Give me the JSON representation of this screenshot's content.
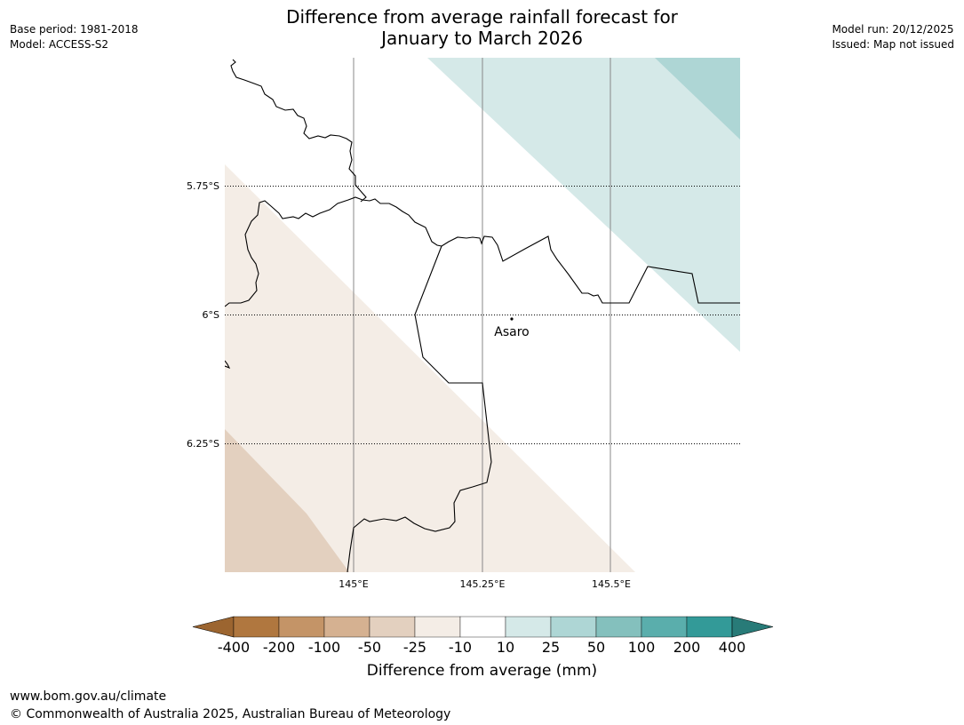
{
  "header": {
    "title_line1": "Difference from average rainfall forecast for",
    "title_line2": "January to March 2026",
    "left_meta": [
      "Base period: 1981-2018",
      "Model: ACCESS-S2"
    ],
    "right_meta": [
      "Model run: 20/12/2025",
      "Issued: Map not issued"
    ]
  },
  "map": {
    "lat_labels": [
      "5.75°S",
      "6°S",
      "6.25°S"
    ],
    "lon_labels": [
      "145°E",
      "145.25°E",
      "145.5°E"
    ],
    "place": {
      "name": "Asaro"
    },
    "colors": {
      "brown_light": "#f4ede6",
      "brown_mid": "#e3d0bf",
      "teal_light": "#d5e9e8",
      "teal_mid": "#aed6d5"
    }
  },
  "legend": {
    "title": "Difference from average (mm)",
    "ticks": [
      "-400",
      "-200",
      "-100",
      "-50",
      "-25",
      "-10",
      "10",
      "25",
      "50",
      "100",
      "200",
      "400"
    ],
    "colors": [
      "#9c6530",
      "#b0773f",
      "#c49467",
      "#d5b191",
      "#e3d0bf",
      "#f4ede6",
      "#ffffff",
      "#d5e9e8",
      "#aed6d5",
      "#84c0bd",
      "#5aaeac",
      "#339a98",
      "#287b78"
    ]
  },
  "footer": {
    "line1": "www.bom.gov.au/climate",
    "line2": "© Commonwealth of Australia 2025, Australian Bureau of Meteorology"
  }
}
